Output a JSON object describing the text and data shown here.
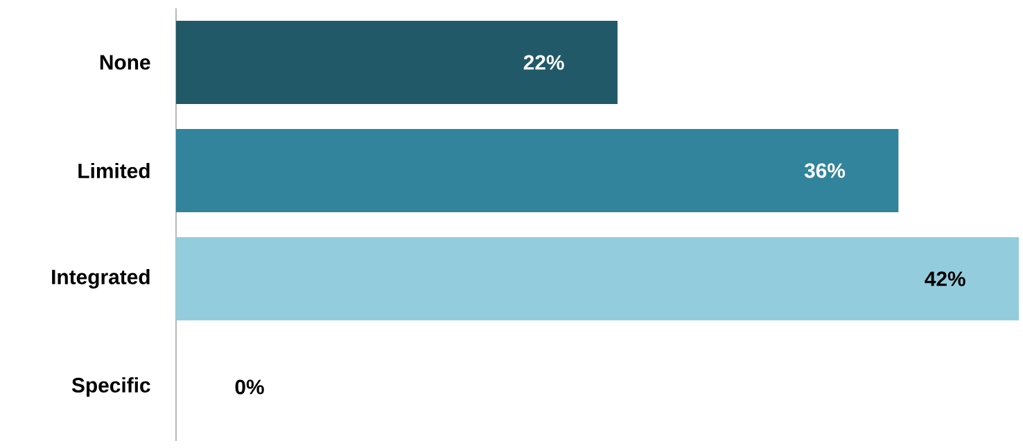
{
  "chart_data": {
    "type": "bar",
    "orientation": "horizontal",
    "categories": [
      "None",
      "Limited",
      "Integrated",
      "Specific"
    ],
    "values": [
      22,
      36,
      42,
      0
    ],
    "colors": [
      "#215968",
      "#31849b",
      "#93cddd",
      "#93cddd"
    ],
    "value_labels": [
      "22%",
      "36%",
      "42%",
      "0%"
    ]
  }
}
